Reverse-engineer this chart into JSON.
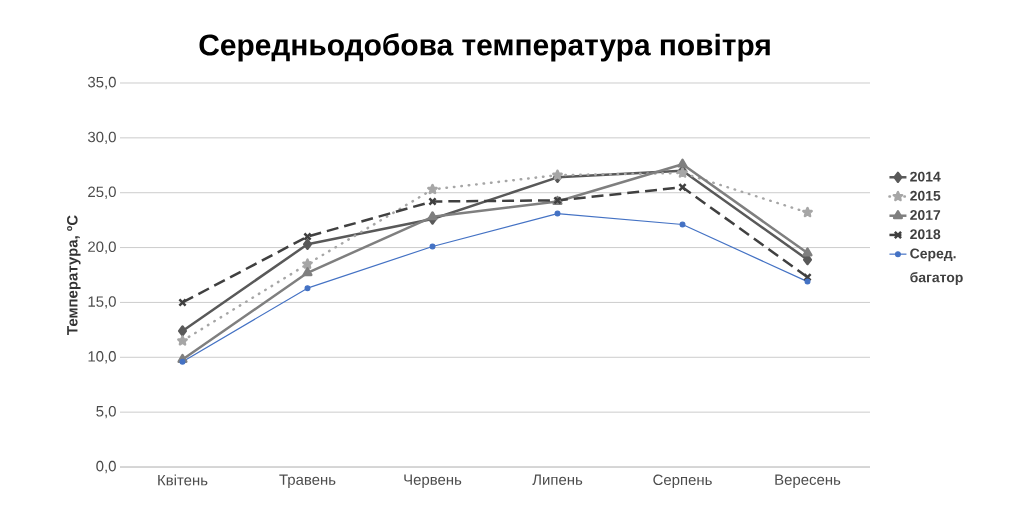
{
  "chart_data": {
    "type": "line",
    "title": "Середньодобова температура повітря",
    "ylabel": "Температура, ºС",
    "categories": [
      "Квітень",
      "Травень",
      "Червень",
      "Липень",
      "Серпень",
      "Вересень"
    ],
    "series": [
      {
        "name": "2014",
        "color": "#595959",
        "marker": "diamond",
        "line_style": "solid",
        "values": [
          12.4,
          20.3,
          22.6,
          26.4,
          27.0,
          18.9
        ]
      },
      {
        "name": "2015",
        "color": "#a6a6a6",
        "marker": "star",
        "line_style": "dotted",
        "values": [
          11.5,
          18.5,
          25.3,
          26.6,
          26.8,
          23.2
        ]
      },
      {
        "name": "2017",
        "color": "#7f7f7f",
        "marker": "triangle",
        "line_style": "solid",
        "values": [
          9.8,
          17.7,
          22.8,
          24.2,
          27.6,
          19.5
        ]
      },
      {
        "name": "2018",
        "color": "#404040",
        "marker": "cross",
        "line_style": "dashed",
        "values": [
          15.0,
          21.0,
          24.2,
          24.3,
          25.5,
          17.3
        ]
      },
      {
        "name": "Серед. багатор",
        "color": "#4472c4",
        "marker": "circle",
        "line_style": "solid",
        "values": [
          9.6,
          16.3,
          20.1,
          23.1,
          22.1,
          16.9
        ]
      }
    ],
    "ylim": [
      0,
      35
    ],
    "yticks": [
      {
        "value": 0,
        "label": "0,0"
      },
      {
        "value": 5,
        "label": "5,0"
      },
      {
        "value": 10,
        "label": "10,0"
      },
      {
        "value": 15,
        "label": "15,0"
      },
      {
        "value": 20,
        "label": "20,0"
      },
      {
        "value": 25,
        "label": "25,0"
      },
      {
        "value": 30,
        "label": "30,0"
      },
      {
        "value": 35,
        "label": "35,0"
      }
    ],
    "grid": "y",
    "legend": "right"
  }
}
